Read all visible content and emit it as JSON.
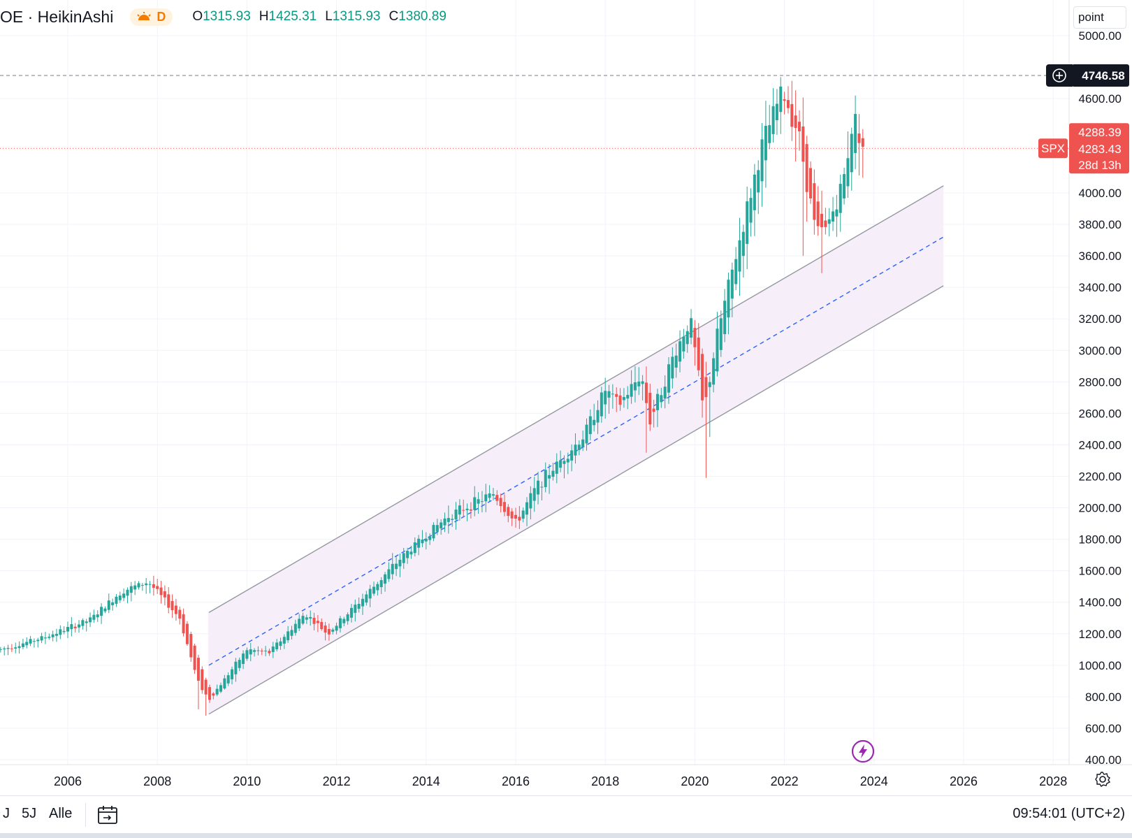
{
  "header": {
    "symbol": "OE · HeikinAshi",
    "interval": "D",
    "interval_icon": "sun-icon",
    "ohlc": [
      {
        "key": "O",
        "value": "1315.93"
      },
      {
        "key": "H",
        "value": "1425.31"
      },
      {
        "key": "L",
        "value": "1315.93"
      },
      {
        "key": "C",
        "value": "1380.89"
      }
    ]
  },
  "price_scale": {
    "mode_label": "point"
  },
  "price_labels": {
    "crosshair_value": "4746.58",
    "last_high": "4288.39",
    "last_price": "4283.43",
    "countdown": "28d 13h",
    "symbol_tag": "SPX"
  },
  "bottom_bar": {
    "ranges": [
      "J",
      "5J",
      "Alle"
    ],
    "clock": "09:54:01 (UTC+2)"
  },
  "colors": {
    "up": "#26a69a",
    "down": "#ef5350",
    "channel_line": "#9598a1",
    "channel_fill": "#f6eff9",
    "median": "#2962ff",
    "price_line": "#ef5350",
    "crosshair_label": "#131722"
  },
  "chart_data": {
    "type": "candlestick",
    "style": "Heikin Ashi",
    "interval": "monthly",
    "y_axis_ticks": [
      400,
      600,
      800,
      1000,
      1200,
      1400,
      1600,
      1800,
      2000,
      2200,
      2400,
      2600,
      2800,
      3000,
      3200,
      3400,
      3600,
      3800,
      4000,
      4600,
      5000
    ],
    "y_tick_labels": [
      "400.00",
      "600.00",
      "800.00",
      "1000.00",
      "1200.00",
      "1400.00",
      "1600.00",
      "1800.00",
      "2000.00",
      "2200.00",
      "2400.00",
      "2600.00",
      "2800.00",
      "3000.00",
      "3200.00",
      "3400.00",
      "3600.00",
      "3800.00",
      "4000.00",
      "4600.00",
      "5000.00"
    ],
    "ylim": [
      350,
      5050
    ],
    "x_axis_ticks": [
      2006,
      2008,
      2010,
      2012,
      2014,
      2016,
      2018,
      2020,
      2022,
      2024,
      2026,
      2028
    ],
    "x_tick_labels": [
      "2006",
      "2008",
      "2010",
      "2012",
      "2014",
      "2016",
      "2018",
      "2020",
      "2022",
      "2024",
      "2026",
      "2028"
    ],
    "xlim": [
      2004.5,
      2028.7
    ],
    "grid": true,
    "anchors": [
      {
        "t": 2004.5,
        "p": 1100
      },
      {
        "t": 2005.5,
        "p": 1180
      },
      {
        "t": 2006.5,
        "p": 1290
      },
      {
        "t": 2007.2,
        "p": 1470
      },
      {
        "t": 2007.8,
        "p": 1530
      },
      {
        "t": 2008.5,
        "p": 1300
      },
      {
        "t": 2008.9,
        "p": 900
      },
      {
        "t": 2009.15,
        "p": 780
      },
      {
        "t": 2010.0,
        "p": 1100
      },
      {
        "t": 2010.5,
        "p": 1080
      },
      {
        "t": 2011.3,
        "p": 1330
      },
      {
        "t": 2011.8,
        "p": 1200
      },
      {
        "t": 2012.5,
        "p": 1400
      },
      {
        "t": 2013.5,
        "p": 1700
      },
      {
        "t": 2014.5,
        "p": 1950
      },
      {
        "t": 2015.5,
        "p": 2090
      },
      {
        "t": 2016.0,
        "p": 1900
      },
      {
        "t": 2016.5,
        "p": 2150
      },
      {
        "t": 2017.5,
        "p": 2450
      },
      {
        "t": 2018.0,
        "p": 2750
      },
      {
        "t": 2018.3,
        "p": 2650
      },
      {
        "t": 2018.8,
        "p": 2850
      },
      {
        "t": 2019.0,
        "p": 2550
      },
      {
        "t": 2019.5,
        "p": 2950
      },
      {
        "t": 2019.9,
        "p": 3200
      },
      {
        "t": 2020.2,
        "p": 2600
      },
      {
        "t": 2020.5,
        "p": 3100
      },
      {
        "t": 2021.0,
        "p": 3700
      },
      {
        "t": 2021.5,
        "p": 4300
      },
      {
        "t": 2021.95,
        "p": 4650
      },
      {
        "t": 2022.3,
        "p": 4400
      },
      {
        "t": 2022.7,
        "p": 3750
      },
      {
        "t": 2022.9,
        "p": 3750
      },
      {
        "t": 2023.3,
        "p": 4050
      },
      {
        "t": 2023.55,
        "p": 4500
      },
      {
        "t": 2023.75,
        "p": 4300
      }
    ],
    "channel": {
      "upper": [
        {
          "t": 2009.15,
          "p": 1335
        },
        {
          "t": 2025.55,
          "p": 4045
        }
      ],
      "lower": [
        {
          "t": 2009.15,
          "p": 690
        },
        {
          "t": 2025.55,
          "p": 3410
        }
      ],
      "median": [
        {
          "t": 2009.15,
          "p": 1000
        },
        {
          "t": 2025.55,
          "p": 3720
        }
      ]
    },
    "horizontal_lines": [
      {
        "value": 4746.58,
        "style": "dashed"
      },
      {
        "value": 4283.43,
        "style": "dotted"
      }
    ]
  }
}
